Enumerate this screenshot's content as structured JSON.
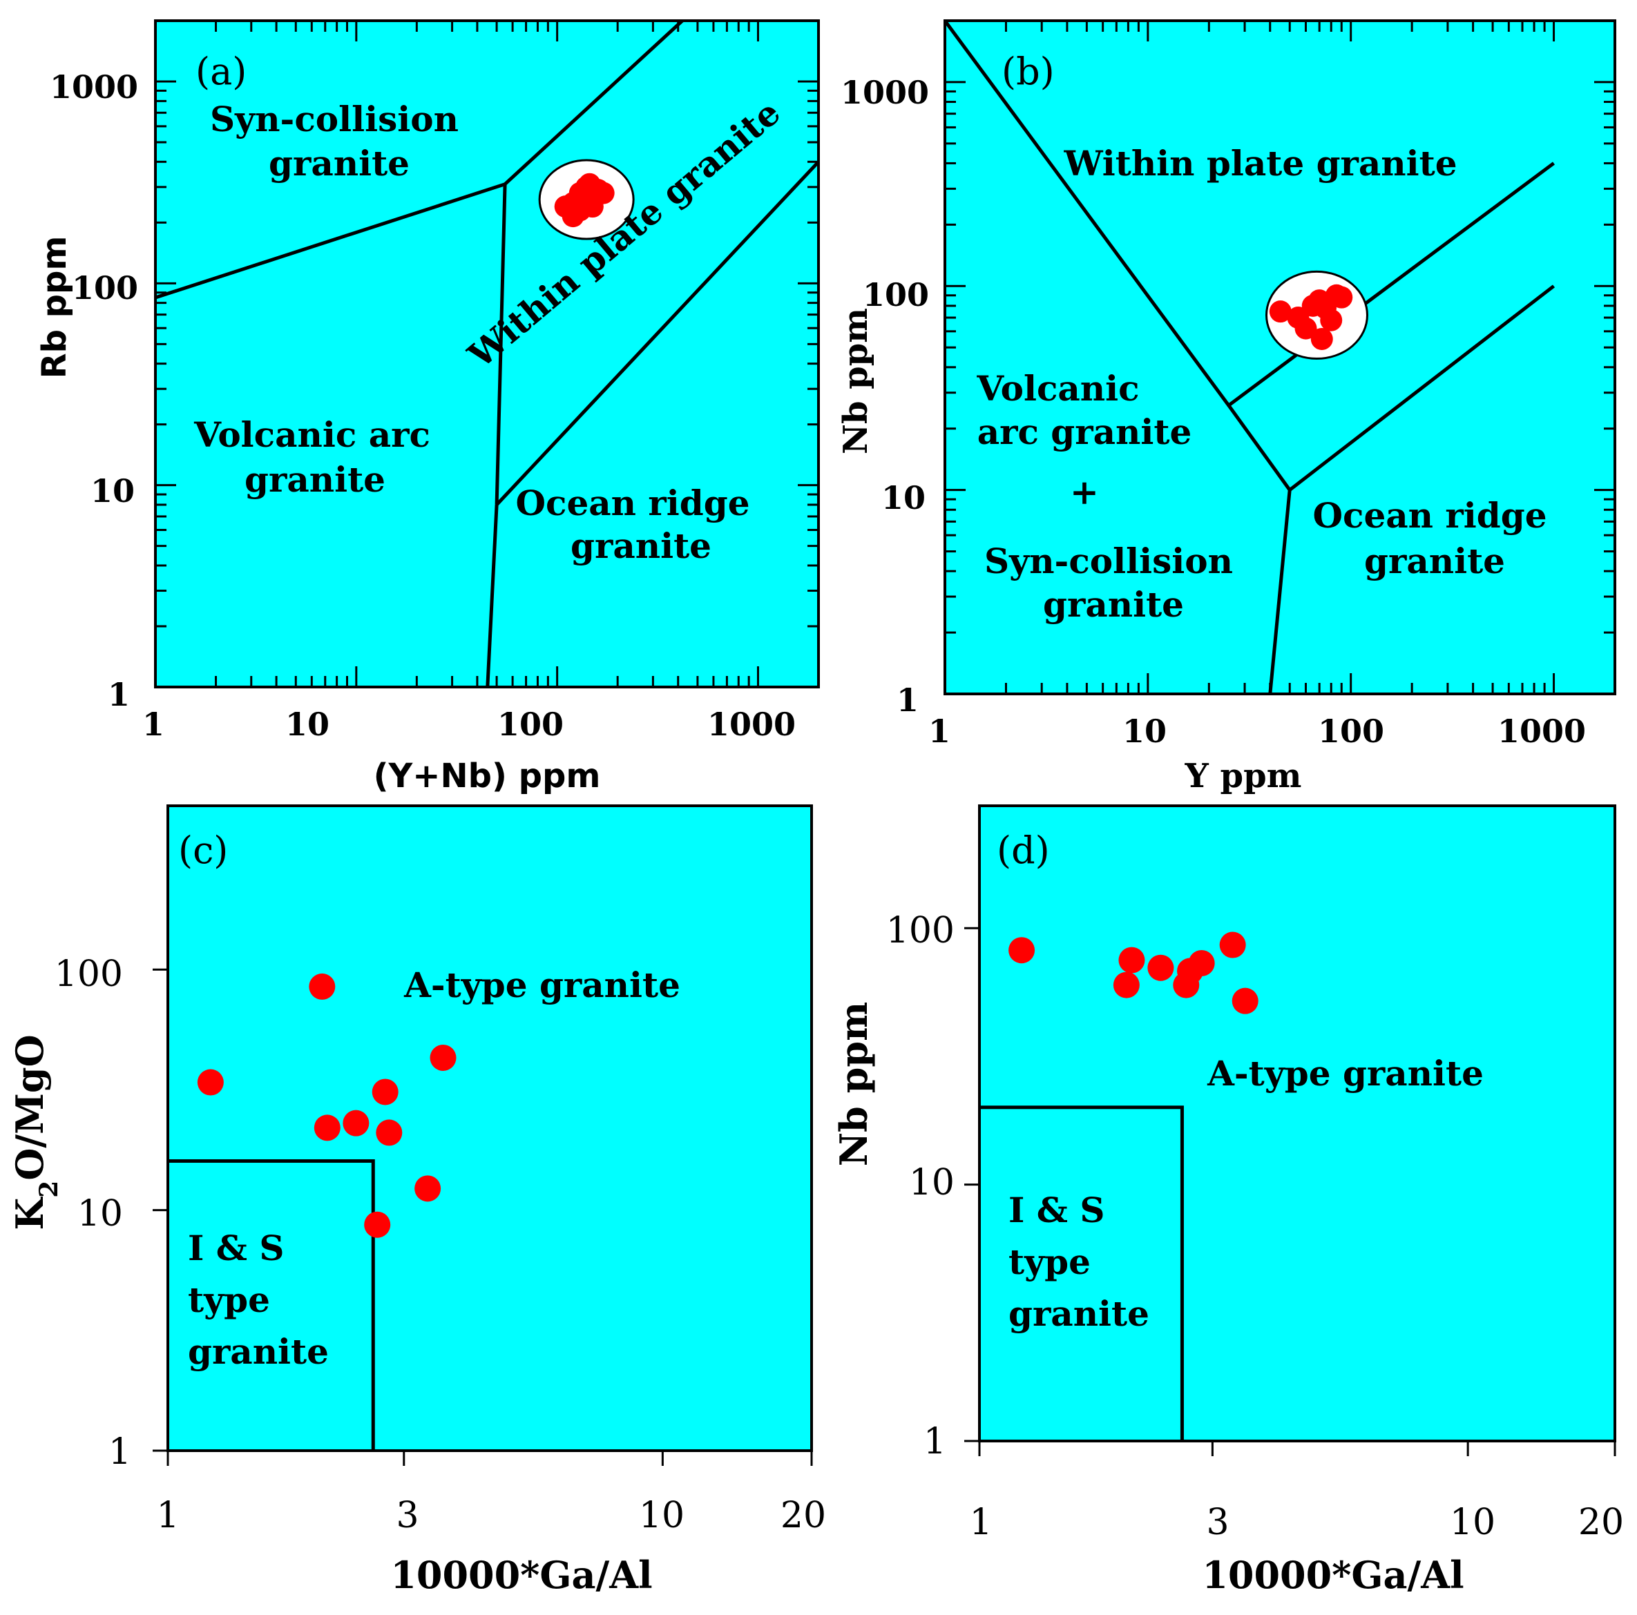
{
  "colors": {
    "field": "#00ffff",
    "points": "#ff0000",
    "boundaries": "#000000"
  },
  "chart_data": [
    {
      "id": "a",
      "type": "scatter",
      "panel_label": "(a)",
      "xlabel": "(Y+Nb) ppm",
      "ylabel": "Rb ppm",
      "xscale": "log",
      "yscale": "log",
      "xlim": [
        1,
        2000
      ],
      "ylim": [
        1,
        2000
      ],
      "xticks": [
        "1",
        "10",
        "100",
        "1000"
      ],
      "yticks": [
        "1",
        "10",
        "100",
        "1000"
      ],
      "fields": [
        "Syn-collision granite",
        "Within plate granite",
        "Volcanic arc granite",
        "Ocean ridge granite"
      ],
      "boundaries": [
        [
          [
            1,
            85
          ],
          [
            55,
            310
          ],
          [
            420,
            2000
          ]
        ],
        [
          [
            55,
            310
          ],
          [
            50,
            8
          ],
          [
            45,
            1
          ]
        ],
        [
          [
            50,
            8
          ],
          [
            2000,
            400
          ]
        ]
      ],
      "ellipse": {
        "center": [
          140,
          260
        ]
      },
      "points": [
        [
          120,
          250
        ],
        [
          130,
          280
        ],
        [
          140,
          300
        ],
        [
          150,
          270
        ],
        [
          160,
          290
        ],
        [
          170,
          280
        ],
        [
          130,
          230
        ],
        [
          150,
          240
        ],
        [
          120,
          215
        ],
        [
          110,
          240
        ],
        [
          145,
          310
        ],
        [
          135,
          255
        ]
      ]
    },
    {
      "id": "b",
      "type": "scatter",
      "panel_label": "(b)",
      "xlabel": "Y ppm",
      "ylabel": "Nb ppm",
      "xscale": "log",
      "yscale": "log",
      "xlim": [
        1,
        2000
      ],
      "ylim": [
        1,
        2000
      ],
      "xticks": [
        "1",
        "10",
        "100",
        "1000"
      ],
      "yticks": [
        "1",
        "10",
        "100",
        "1000"
      ],
      "fields": [
        "Within plate granite",
        "Volcanic arc granite + Syn-collision granite",
        "Ocean ridge granite"
      ],
      "boundaries": [
        [
          [
            1,
            2000
          ],
          [
            25,
            26
          ],
          [
            50,
            10
          ],
          [
            40,
            1
          ]
        ],
        [
          [
            50,
            10
          ],
          [
            1000,
            100
          ]
        ],
        [
          [
            25,
            26
          ],
          [
            1000,
            400
          ]
        ]
      ],
      "ellipse": {
        "center": [
          68,
          72
        ]
      },
      "points": [
        [
          45,
          75
        ],
        [
          55,
          70
        ],
        [
          60,
          62
        ],
        [
          65,
          80
        ],
        [
          70,
          85
        ],
        [
          75,
          78
        ],
        [
          80,
          68
        ],
        [
          85,
          90
        ],
        [
          72,
          55
        ],
        [
          90,
          88
        ]
      ]
    },
    {
      "id": "c",
      "type": "scatter",
      "panel_label": "(c)",
      "xlabel": "10000*Ga/Al",
      "ylabel": "K2O/MgO",
      "xscale": "log",
      "yscale": "log",
      "xlim": [
        1,
        20
      ],
      "ylim": [
        1,
        480
      ],
      "xticks": [
        "1",
        "3",
        "10",
        "20"
      ],
      "yticks": [
        "1",
        "10",
        "100"
      ],
      "fields": [
        "A-type granite",
        "I & S type granite"
      ],
      "is_box": {
        "x": 2.6,
        "y": 16
      },
      "points": [
        [
          1.22,
          34
        ],
        [
          2.05,
          85
        ],
        [
          2.1,
          22
        ],
        [
          2.4,
          23
        ],
        [
          2.75,
          31
        ],
        [
          2.8,
          21
        ],
        [
          2.65,
          8.7
        ],
        [
          3.35,
          12.3
        ],
        [
          3.6,
          43
        ]
      ]
    },
    {
      "id": "d",
      "type": "scatter",
      "panel_label": "(d)",
      "xlabel": "10000*Ga/Al",
      "ylabel": "Nb ppm",
      "xscale": "log",
      "yscale": "log",
      "xlim": [
        1,
        20
      ],
      "ylim": [
        1,
        300
      ],
      "xticks": [
        "1",
        "3",
        "10",
        "20"
      ],
      "yticks": [
        "1",
        "10",
        "100"
      ],
      "fields": [
        "A-type granite",
        "I & S type granite"
      ],
      "is_box": {
        "x": 2.6,
        "y": 20
      },
      "points": [
        [
          1.22,
          82
        ],
        [
          2.0,
          60
        ],
        [
          2.05,
          75
        ],
        [
          2.35,
          70
        ],
        [
          2.65,
          60
        ],
        [
          2.7,
          68
        ],
        [
          2.85,
          73
        ],
        [
          3.3,
          86
        ],
        [
          3.5,
          52
        ]
      ]
    }
  ]
}
